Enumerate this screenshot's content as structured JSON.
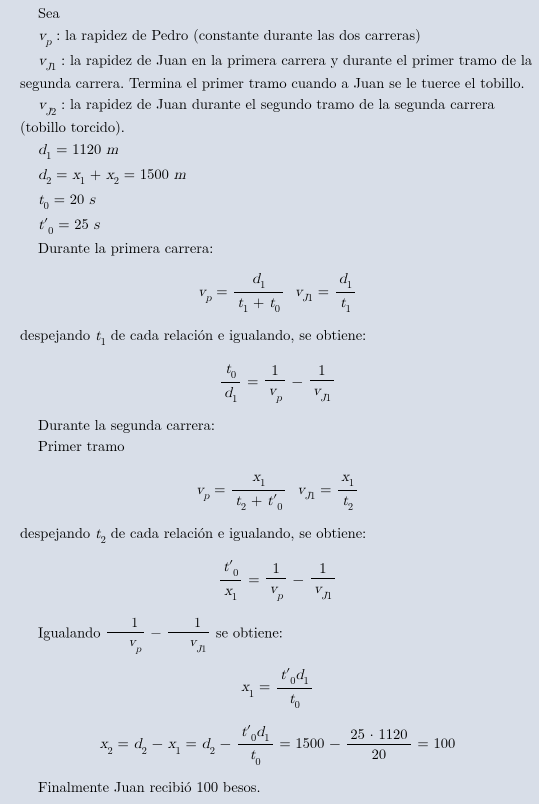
{
  "intro": {
    "sea": "Sea",
    "vp_def": "v_p : la rapidez de Pedro (constante durante las dos carreras)",
    "vj1_def": "v_{J1} : la rapidez de Juan en la primera carrera y durante el primer tramo de la segunda carrera. Termina el primer tramo cuando a Juan se le tuerce el tobillo.",
    "vj2_def": "v_{J2} : la rapidez de Juan durante el segundo tramo de la segunda carrera (tobillo torcido)."
  },
  "defs": {
    "d1": "d_1 = 1120 m",
    "d2": "d_2 = x_1 + x_2 = 1500 m",
    "t0": "t_0 = 20 s",
    "t0p": "t'_0 = 25 s"
  },
  "race1": {
    "title": "Durante la primera carrera:",
    "desp": "despejando t_1 de cada relación e igualando, se obtiene:"
  },
  "race2": {
    "title": "Durante la segunda carrera:",
    "primer": "Primer tramo",
    "desp": "despejando t_2 de cada relación e igualando, se obtiene:"
  },
  "igual": "Igualando 1/v_p − 1/v_{J1} se obtiene:",
  "final": "Finalmente Juan recibió 100 besos.",
  "eq": {
    "vp1_a": "v_p =",
    "vp1_num": "d_1",
    "vp1_den": "t_1 + t_0",
    "vj1_a": "v_{J1} =",
    "vj1_num": "d_1",
    "vj1_den": "t_1",
    "frac1_num": "t_0",
    "frac1_den": "d_1",
    "one_vp_num": "1",
    "one_vp_den": "v_p",
    "one_vj1_num": "1",
    "one_vj1_den": "v_{J1}",
    "vp2_num": "x_1",
    "vp2_den": "t_2 + t'_0",
    "vj12_num": "x_1",
    "vj12_den": "t_2",
    "frac2_num": "t'_0",
    "frac2_den": "x_1",
    "x1_lhs": "x_1 =",
    "x1_num": "t'_0 d_1",
    "x1_den": "t_0",
    "x2_a": "x_2 = d_2 − x_1 = d_2 −",
    "x2_num": "t'_0 d_1",
    "x2_den": "t_0",
    "x2_b": "= 1500 −",
    "x2_c_num": "25 · 1120",
    "x2_c_den": "20",
    "x2_d": "= 100"
  }
}
